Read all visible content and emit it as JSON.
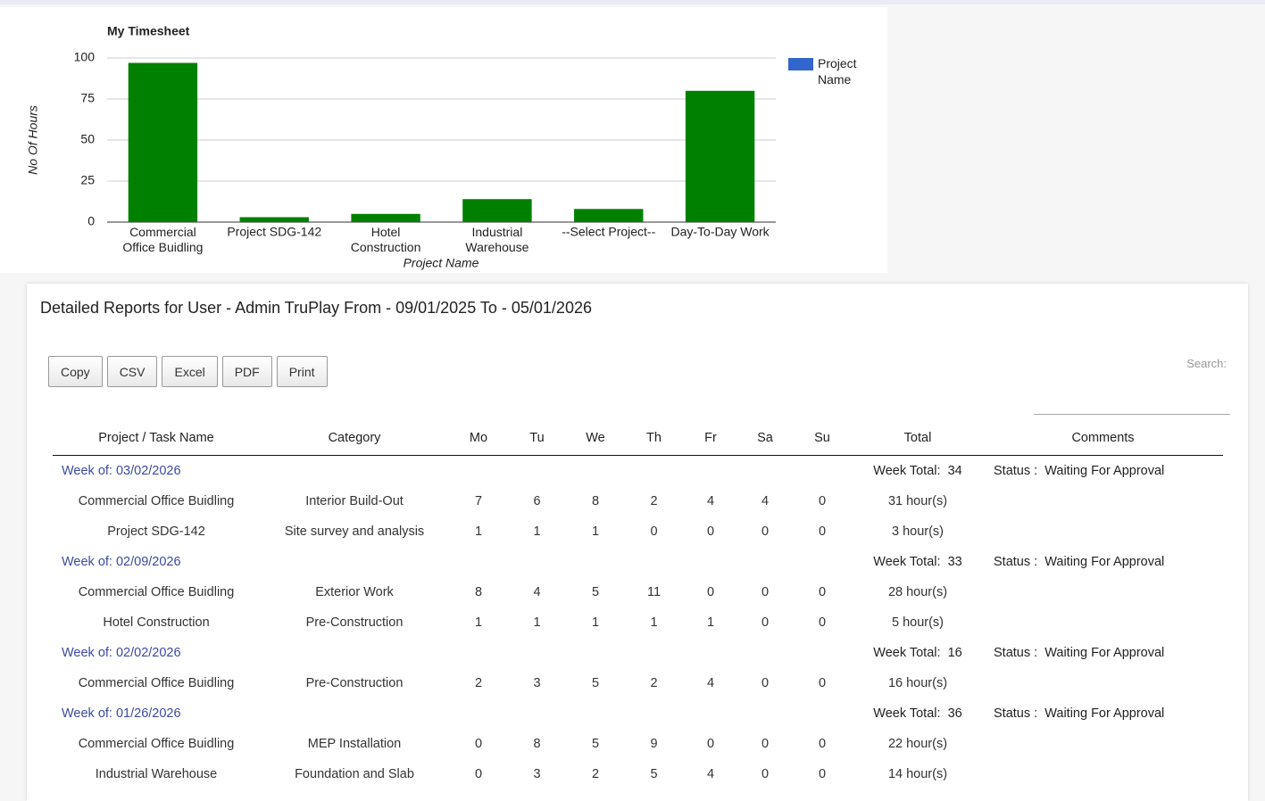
{
  "chart_data": {
    "type": "bar",
    "title": "My Timesheet",
    "x_label": "Project Name",
    "y_label": "No Of Hours",
    "categories": [
      "Commercial Office Buidling",
      "Project SDG-142",
      "Hotel Construction",
      "Industrial Warehouse",
      "--Select Project--",
      "Day-To-Day Work"
    ],
    "series": [
      {
        "name": "Project Name",
        "color": "#3366cc",
        "values": [
          97,
          3,
          5,
          14,
          8,
          80
        ]
      }
    ],
    "bar_color": "#008000",
    "ylim": [
      0,
      100
    ],
    "yticks": [
      0,
      25,
      50,
      75,
      100
    ],
    "grid": true,
    "legend": "right"
  },
  "report": {
    "title": "Detailed Reports for User - Admin TruPlay From - 09/01/2025 To - 05/01/2026",
    "buttons": [
      "Copy",
      "CSV",
      "Excel",
      "PDF",
      "Print"
    ],
    "search_label": "Search:",
    "headers": [
      "Project / Task Name",
      "Category",
      "Mo",
      "Tu",
      "We",
      "Th",
      "Fr",
      "Sa",
      "Su",
      "Total",
      "Comments"
    ],
    "groups": [
      {
        "week": "Week of: 03/02/2026",
        "total_label": "Week Total:",
        "total": 34,
        "status_label": "Status :",
        "status": "Waiting For Approval",
        "rows": [
          [
            "Commercial Office Buidling",
            "Interior Build-Out",
            7,
            6,
            8,
            2,
            4,
            4,
            0,
            "31 hour(s)"
          ],
          [
            "Project SDG-142",
            "Site survey and analysis",
            1,
            1,
            1,
            0,
            0,
            0,
            0,
            "3 hour(s)"
          ]
        ]
      },
      {
        "week": "Week of: 02/09/2026",
        "total_label": "Week Total:",
        "total": 33,
        "status_label": "Status :",
        "status": "Waiting For Approval",
        "rows": [
          [
            "Commercial Office Buidling",
            "Exterior Work",
            8,
            4,
            5,
            11,
            0,
            0,
            0,
            "28 hour(s)"
          ],
          [
            "Hotel Construction",
            "Pre-Construction",
            1,
            1,
            1,
            1,
            1,
            0,
            0,
            "5 hour(s)"
          ]
        ]
      },
      {
        "week": "Week of: 02/02/2026",
        "total_label": "Week Total:",
        "total": 16,
        "status_label": "Status :",
        "status": "Waiting For Approval",
        "rows": [
          [
            "Commercial Office Buidling",
            "Pre-Construction",
            2,
            3,
            5,
            2,
            4,
            0,
            0,
            "16 hour(s)"
          ]
        ]
      },
      {
        "week": "Week of: 01/26/2026",
        "total_label": "Week Total:",
        "total": 36,
        "status_label": "Status :",
        "status": "Waiting For Approval",
        "rows": [
          [
            "Commercial Office Buidling",
            "MEP Installation",
            0,
            8,
            5,
            9,
            0,
            0,
            0,
            "22 hour(s)"
          ],
          [
            "Industrial Warehouse",
            "Foundation and Slab",
            0,
            3,
            2,
            5,
            4,
            0,
            0,
            "14 hour(s)"
          ]
        ]
      }
    ]
  }
}
